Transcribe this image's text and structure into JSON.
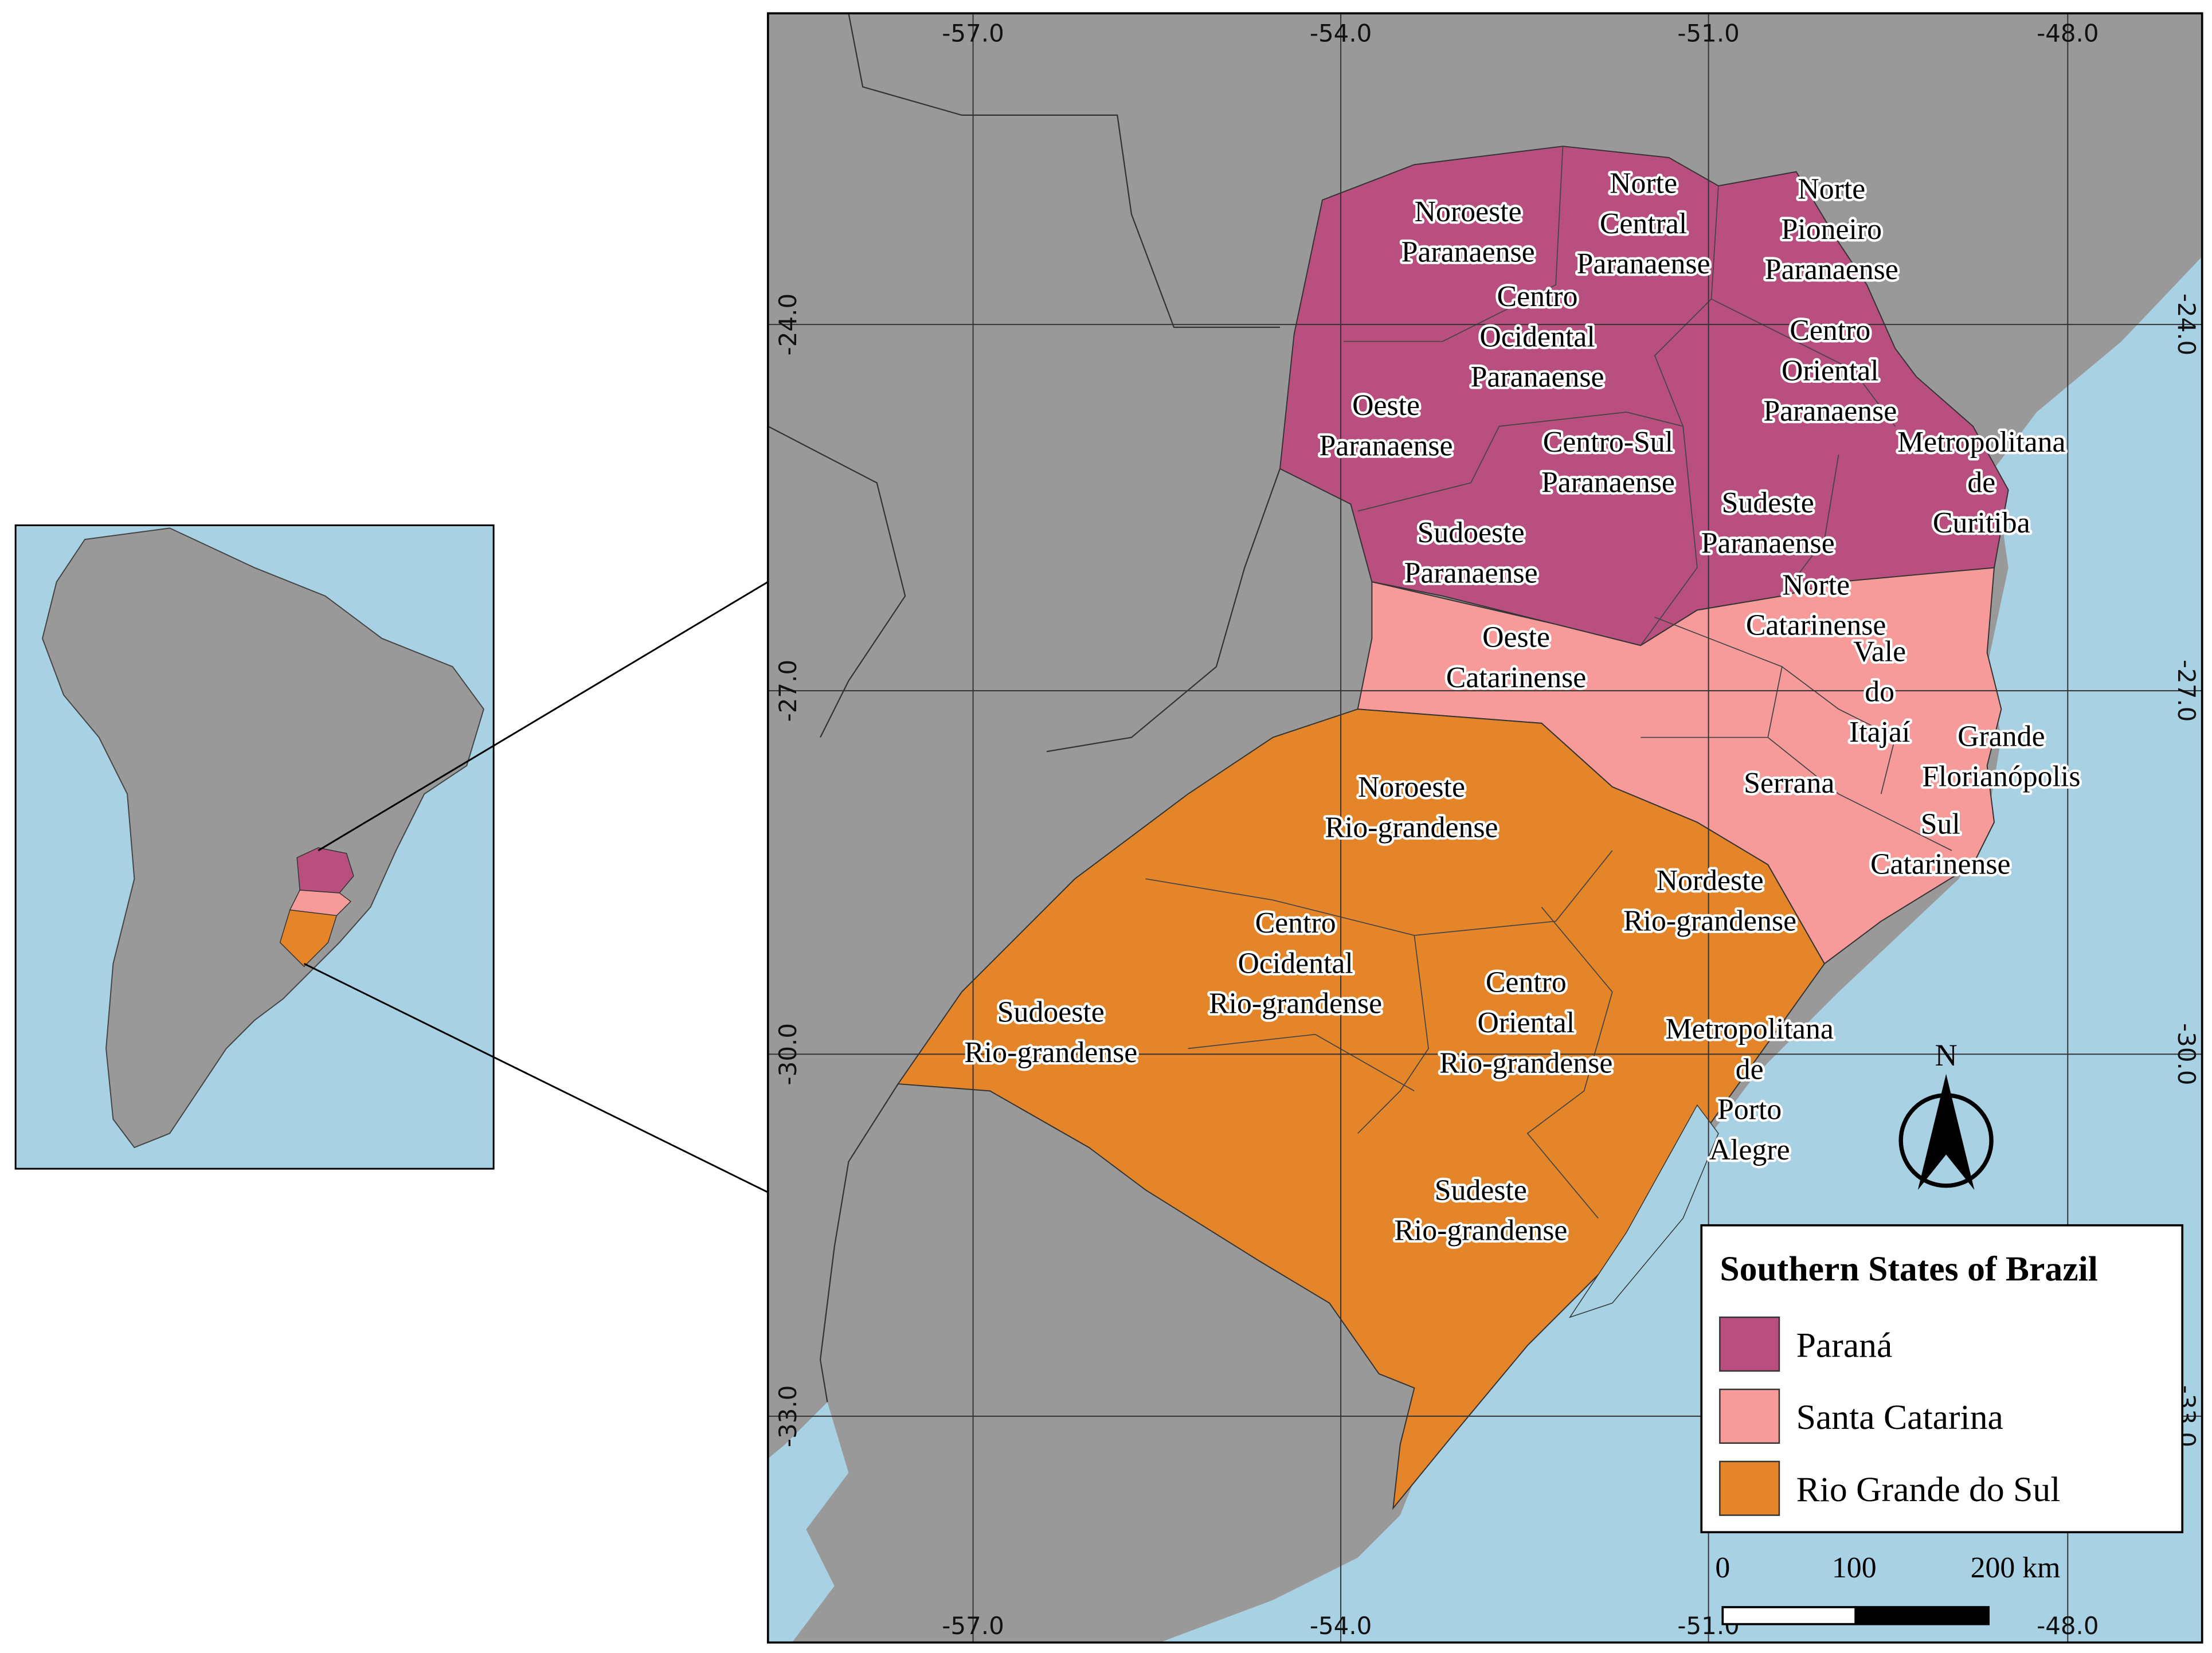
{
  "map": {
    "graticule": {
      "top": [
        "-57.0",
        "-54.0",
        "-51.0",
        "-48.0"
      ],
      "bottom": [
        "-57.0",
        "-54.0",
        "-51.0",
        "-48.0"
      ],
      "left": [
        "-24.0",
        "-27.0",
        "-30.0",
        "-33.0"
      ],
      "right": [
        "-24.0",
        "-27.0",
        "-30.0",
        "-33.0"
      ]
    },
    "regions": [
      {
        "lines": [
          "Noroeste",
          "Paranaense"
        ]
      },
      {
        "lines": [
          "Norte",
          "Central",
          "Paranaense"
        ]
      },
      {
        "lines": [
          "Norte",
          "Pioneiro",
          "Paranaense"
        ]
      },
      {
        "lines": [
          "Centro",
          "Ocidental",
          "Paranaense"
        ]
      },
      {
        "lines": [
          "Centro",
          "Oriental",
          "Paranaense"
        ]
      },
      {
        "lines": [
          "Oeste",
          "Paranaense"
        ]
      },
      {
        "lines": [
          "Centro-Sul",
          "Paranaense"
        ]
      },
      {
        "lines": [
          "Metropolitana",
          "de",
          "Curitiba"
        ]
      },
      {
        "lines": [
          "Sudeste",
          "Paranaense"
        ]
      },
      {
        "lines": [
          "Sudoeste",
          "Paranaense"
        ]
      },
      {
        "lines": [
          "Norte",
          "Catarinense"
        ]
      },
      {
        "lines": [
          "Oeste",
          "Catarinense"
        ]
      },
      {
        "lines": [
          "Vale",
          "do",
          "Itajaí"
        ]
      },
      {
        "lines": [
          "Grande",
          "Florianópolis"
        ]
      },
      {
        "lines": [
          "Serrana"
        ]
      },
      {
        "lines": [
          "Sul",
          "Catarinense"
        ]
      },
      {
        "lines": [
          "Noroeste",
          "Rio-grandense"
        ]
      },
      {
        "lines": [
          "Nordeste",
          "Rio-grandense"
        ]
      },
      {
        "lines": [
          "Centro",
          "Ocidental",
          "Rio-grandense"
        ]
      },
      {
        "lines": [
          "Centro",
          "Oriental",
          "Rio-grandense"
        ]
      },
      {
        "lines": [
          "Metropolitana",
          "de",
          "Porto",
          "Alegre"
        ]
      },
      {
        "lines": [
          "Sudoeste",
          "Rio-grandense"
        ]
      },
      {
        "lines": [
          "Sudeste",
          "Rio-grandense"
        ]
      }
    ],
    "north": "N",
    "legend": {
      "title": "Southern States of Brazil",
      "items": [
        {
          "label": "Paraná",
          "color": "#b94f7e"
        },
        {
          "label": "Santa Catarina",
          "color": "#f79a9a"
        },
        {
          "label": "Rio Grande do Sul",
          "color": "#e5852a"
        }
      ]
    },
    "scale_bar": [
      "0",
      "100",
      "200 km"
    ]
  }
}
